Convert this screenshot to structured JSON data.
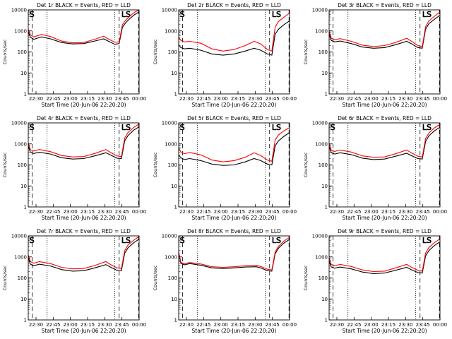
{
  "chart_data": [
    {
      "type": "line",
      "title": "Det 1r BLACK = Events, RED = LLD",
      "xlabel": "Start Time (20-Jun-06 22:20:20)",
      "ylabel": "Counts/sec",
      "yscale": "log",
      "ylim": [
        1,
        10000
      ],
      "x_ticks": [
        "22:30",
        "22:45",
        "23:00",
        "23:15",
        "23:30",
        "23:45",
        "00:00"
      ],
      "y_ticks": [
        "1",
        "10",
        "100",
        "1000",
        "10000"
      ],
      "annotations": [
        "S",
        "LS"
      ],
      "series": [
        {
          "color": "#000000",
          "x": [
            0,
            0.02,
            0.05,
            0.08,
            0.12,
            0.2,
            0.3,
            0.4,
            0.5,
            0.6,
            0.68,
            0.72,
            0.78,
            0.82,
            0.85,
            0.88,
            0.92,
            0.96,
            1.0
          ],
          "values": [
            900,
            500,
            400,
            450,
            520,
            420,
            280,
            240,
            250,
            330,
            420,
            330,
            230,
            250,
            1500,
            2500,
            4000,
            6000,
            8000
          ]
        },
        {
          "color": "#ff0000",
          "x": [
            0,
            0.02,
            0.05,
            0.08,
            0.12,
            0.2,
            0.3,
            0.4,
            0.5,
            0.6,
            0.68,
            0.72,
            0.78,
            0.82,
            0.85,
            0.88,
            0.92,
            0.96,
            1.0
          ],
          "values": [
            1200,
            650,
            520,
            580,
            680,
            540,
            330,
            270,
            280,
            400,
            560,
            420,
            290,
            300,
            2000,
            3300,
            5200,
            7800,
            10000
          ]
        }
      ]
    },
    {
      "type": "line",
      "title": "Det 2r BLACK = Events, RED = LLD",
      "xlabel": "Start Time (20-Jun-06 22:20:20)",
      "ylabel": "Counts/sec",
      "yscale": "log",
      "ylim": [
        1,
        10000
      ],
      "x_ticks": [
        "22:30",
        "22:45",
        "23:00",
        "23:15",
        "23:30",
        "23:45",
        "00:00"
      ],
      "y_ticks": [
        "1",
        "10",
        "100",
        "1000",
        "10000"
      ],
      "annotations": [
        "S",
        "LS"
      ],
      "series": [
        {
          "color": "#000000",
          "x": [
            0,
            0.02,
            0.05,
            0.1,
            0.2,
            0.3,
            0.4,
            0.5,
            0.6,
            0.68,
            0.74,
            0.8,
            0.84,
            0.87,
            0.9,
            0.95,
            1.0
          ],
          "values": [
            220,
            160,
            140,
            150,
            120,
            80,
            70,
            80,
            110,
            150,
            120,
            80,
            70,
            700,
            1200,
            2000,
            3000
          ]
        },
        {
          "color": "#ff0000",
          "x": [
            0,
            0.02,
            0.05,
            0.1,
            0.2,
            0.3,
            0.4,
            0.5,
            0.6,
            0.68,
            0.74,
            0.8,
            0.84,
            0.87,
            0.9,
            0.95,
            1.0
          ],
          "values": [
            500,
            350,
            300,
            320,
            260,
            140,
            110,
            130,
            200,
            320,
            240,
            130,
            110,
            1500,
            2800,
            4500,
            7000
          ]
        }
      ]
    },
    {
      "type": "line",
      "title": "Det 3r BLACK = Events, RED = LLD",
      "xlabel": "Start Time (20-Jun-06 22:20:20)",
      "ylabel": "Counts/sec",
      "yscale": "log",
      "ylim": [
        1,
        10000
      ],
      "x_ticks": [
        "22:30",
        "22:45",
        "23:00",
        "23:15",
        "23:30",
        "23:45",
        "00:00"
      ],
      "y_ticks": [
        "1",
        "10",
        "100",
        "1000",
        "10000"
      ],
      "annotations": [
        "LS"
      ],
      "series": [
        {
          "color": "#000000",
          "x": [
            0,
            0.02,
            0.05,
            0.1,
            0.2,
            0.3,
            0.4,
            0.5,
            0.6,
            0.7,
            0.74,
            0.8,
            0.84,
            0.87,
            0.9,
            0.95,
            1.0
          ],
          "values": [
            700,
            350,
            300,
            330,
            250,
            170,
            150,
            160,
            220,
            320,
            250,
            160,
            150,
            1200,
            2200,
            3600,
            5500
          ]
        },
        {
          "color": "#ff0000",
          "x": [
            0,
            0.02,
            0.05,
            0.1,
            0.2,
            0.3,
            0.4,
            0.5,
            0.6,
            0.7,
            0.74,
            0.8,
            0.84,
            0.87,
            0.9,
            0.95,
            1.0
          ],
          "values": [
            950,
            450,
            380,
            430,
            320,
            210,
            180,
            200,
            280,
            450,
            330,
            200,
            180,
            1600,
            3000,
            5000,
            8000
          ]
        }
      ]
    },
    {
      "type": "line",
      "title": "Det 4r BLACK = Events, RED = LLD",
      "xlabel": "Start Time (20-Jun-06 22:20:20)",
      "ylabel": "Counts/sec",
      "yscale": "log",
      "ylim": [
        1,
        10000
      ],
      "x_ticks": [
        "22:30",
        "22:45",
        "23:00",
        "23:15",
        "23:30",
        "23:45",
        "00:00"
      ],
      "y_ticks": [
        "1",
        "10",
        "100",
        "1000",
        "10000"
      ],
      "annotations": [
        "S",
        "LS"
      ],
      "series": [
        {
          "color": "#000000",
          "x": [
            0,
            0.02,
            0.05,
            0.1,
            0.2,
            0.3,
            0.4,
            0.5,
            0.6,
            0.7,
            0.74,
            0.8,
            0.84,
            0.87,
            0.9,
            0.95,
            1.0
          ],
          "values": [
            800,
            400,
            350,
            400,
            330,
            220,
            190,
            200,
            270,
            380,
            300,
            210,
            200,
            1400,
            2500,
            4500,
            6500
          ]
        },
        {
          "color": "#ff0000",
          "x": [
            0,
            0.02,
            0.05,
            0.1,
            0.2,
            0.3,
            0.4,
            0.5,
            0.6,
            0.7,
            0.74,
            0.8,
            0.84,
            0.87,
            0.9,
            0.95,
            1.0
          ],
          "values": [
            1100,
            530,
            460,
            540,
            430,
            280,
            240,
            250,
            350,
            540,
            400,
            270,
            250,
            1900,
            3500,
            6000,
            9000
          ]
        }
      ]
    },
    {
      "type": "line",
      "title": "Det 5r BLACK = Events, RED = LLD",
      "xlabel": "Start Time (20-Jun-06 22:20:20)",
      "ylabel": "Counts/sec",
      "yscale": "log",
      "ylim": [
        1,
        10000
      ],
      "x_ticks": [
        "22:30",
        "22:45",
        "23:00",
        "23:15",
        "23:30",
        "23:45",
        "00:00"
      ],
      "y_ticks": [
        "1",
        "10",
        "100",
        "1000",
        "10000"
      ],
      "annotations": [
        "S",
        "LS"
      ],
      "series": [
        {
          "color": "#000000",
          "x": [
            0,
            0.02,
            0.05,
            0.1,
            0.2,
            0.3,
            0.4,
            0.5,
            0.6,
            0.68,
            0.74,
            0.8,
            0.84,
            0.87,
            0.9,
            0.95,
            1.0
          ],
          "values": [
            300,
            220,
            180,
            200,
            160,
            110,
            95,
            100,
            140,
            200,
            160,
            110,
            100,
            800,
            1400,
            2300,
            3500
          ]
        },
        {
          "color": "#ff0000",
          "x": [
            0,
            0.02,
            0.05,
            0.1,
            0.2,
            0.3,
            0.4,
            0.5,
            0.6,
            0.68,
            0.74,
            0.8,
            0.84,
            0.87,
            0.9,
            0.95,
            1.0
          ],
          "values": [
            600,
            420,
            340,
            390,
            300,
            170,
            140,
            160,
            230,
            380,
            280,
            170,
            150,
            1500,
            2700,
            4200,
            6000
          ]
        }
      ]
    },
    {
      "type": "line",
      "title": "Det 6r BLACK = Events, RED = LLD",
      "xlabel": "Start Time (20-Jun-06 22:20:20)",
      "ylabel": "Counts/sec",
      "yscale": "log",
      "ylim": [
        1,
        10000
      ],
      "x_ticks": [
        "22:30",
        "22:45",
        "23:00",
        "23:15",
        "23:30",
        "23:45",
        "00:00"
      ],
      "y_ticks": [
        "1",
        "10",
        "100",
        "1000",
        "10000"
      ],
      "annotations": [
        "S",
        "LS"
      ],
      "series": [
        {
          "color": "#000000",
          "x": [
            0,
            0.02,
            0.05,
            0.1,
            0.2,
            0.3,
            0.4,
            0.5,
            0.6,
            0.7,
            0.74,
            0.8,
            0.84,
            0.87,
            0.9,
            0.95,
            1.0
          ],
          "values": [
            750,
            380,
            330,
            380,
            310,
            210,
            180,
            190,
            260,
            360,
            280,
            200,
            190,
            1300,
            2400,
            4200,
            6200
          ]
        },
        {
          "color": "#ff0000",
          "x": [
            0,
            0.02,
            0.05,
            0.1,
            0.2,
            0.3,
            0.4,
            0.5,
            0.6,
            0.7,
            0.74,
            0.8,
            0.84,
            0.87,
            0.9,
            0.95,
            1.0
          ],
          "values": [
            1050,
            500,
            440,
            510,
            410,
            270,
            230,
            240,
            340,
            510,
            380,
            260,
            240,
            1800,
            3300,
            5800,
            8500
          ]
        }
      ]
    },
    {
      "type": "line",
      "title": "Det 7r BLACK = Events, RED = LLD",
      "xlabel": "Start Time (20-Jun-06 22:20:20)",
      "ylabel": "Counts/sec",
      "yscale": "log",
      "ylim": [
        1,
        10000
      ],
      "x_ticks": [
        "22:30",
        "22:45",
        "23:00",
        "23:15",
        "23:30",
        "23:45",
        "00:00"
      ],
      "y_ticks": [
        "1",
        "10",
        "100",
        "1000",
        "10000"
      ],
      "annotations": [
        "S",
        "LS"
      ],
      "series": [
        {
          "color": "#000000",
          "x": [
            0,
            0.02,
            0.05,
            0.1,
            0.2,
            0.3,
            0.4,
            0.5,
            0.6,
            0.7,
            0.74,
            0.8,
            0.84,
            0.87,
            0.9,
            0.95,
            1.0
          ],
          "values": [
            900,
            450,
            380,
            450,
            370,
            250,
            210,
            220,
            300,
            430,
            330,
            230,
            220,
            1500,
            2700,
            4700,
            7000
          ]
        },
        {
          "color": "#ff0000",
          "x": [
            0,
            0.02,
            0.05,
            0.1,
            0.2,
            0.3,
            0.4,
            0.5,
            0.6,
            0.7,
            0.74,
            0.8,
            0.84,
            0.87,
            0.9,
            0.95,
            1.0
          ],
          "values": [
            1250,
            600,
            500,
            600,
            480,
            320,
            270,
            280,
            390,
            600,
            440,
            300,
            280,
            2000,
            3700,
            6200,
            9500
          ]
        }
      ]
    },
    {
      "type": "line",
      "title": "Det 8r BLACK = Events, RED = LLD",
      "xlabel": "Start Time (20-Jun-06 22:20:20)",
      "ylabel": "Counts/sec",
      "yscale": "log",
      "ylim": [
        1,
        10000
      ],
      "x_ticks": [
        "22:30",
        "22:45",
        "23:00",
        "23:15",
        "23:30",
        "23:45",
        "00:00"
      ],
      "y_ticks": [
        "1",
        "10",
        "100",
        "1000",
        "10000"
      ],
      "annotations": [
        "S",
        "LS"
      ],
      "series": [
        {
          "color": "#000000",
          "x": [
            0,
            0.02,
            0.05,
            0.1,
            0.2,
            0.3,
            0.4,
            0.5,
            0.6,
            0.7,
            0.74,
            0.8,
            0.84,
            0.87,
            0.9,
            0.95,
            1.0
          ],
          "values": [
            1500,
            500,
            420,
            480,
            400,
            300,
            280,
            300,
            330,
            340,
            300,
            220,
            210,
            1400,
            2600,
            4600,
            6800
          ]
        },
        {
          "color": "#ff0000",
          "x": [
            0,
            0.02,
            0.05,
            0.1,
            0.2,
            0.3,
            0.4,
            0.5,
            0.6,
            0.7,
            0.74,
            0.8,
            0.84,
            0.87,
            0.9,
            0.95,
            1.0
          ],
          "values": [
            1800,
            550,
            470,
            540,
            460,
            340,
            320,
            340,
            380,
            400,
            350,
            260,
            240,
            1700,
            3200,
            5700,
            8500
          ]
        }
      ]
    },
    {
      "type": "line",
      "title": "Det 9r BLACK = Events, RED = LLD",
      "xlabel": "Start Time (20-Jun-06 22:20:20)",
      "ylabel": "Counts/sec",
      "yscale": "log",
      "ylim": [
        1,
        10000
      ],
      "x_ticks": [
        "22:30",
        "22:45",
        "23:00",
        "23:15",
        "23:30",
        "23:45",
        "00:00"
      ],
      "y_ticks": [
        "1",
        "10",
        "100",
        "1000",
        "10000"
      ],
      "annotations": [
        "LS"
      ],
      "series": [
        {
          "color": "#000000",
          "x": [
            0,
            0.02,
            0.05,
            0.1,
            0.2,
            0.3,
            0.4,
            0.5,
            0.6,
            0.7,
            0.74,
            0.8,
            0.84,
            0.87,
            0.9,
            0.95,
            1.0
          ],
          "values": [
            600,
            330,
            290,
            330,
            270,
            190,
            160,
            170,
            230,
            320,
            250,
            180,
            170,
            1100,
            2000,
            3500,
            5200
          ]
        },
        {
          "color": "#ff0000",
          "x": [
            0,
            0.02,
            0.05,
            0.1,
            0.2,
            0.3,
            0.4,
            0.5,
            0.6,
            0.7,
            0.74,
            0.8,
            0.84,
            0.87,
            0.9,
            0.95,
            1.0
          ],
          "values": [
            850,
            430,
            380,
            440,
            350,
            240,
            200,
            210,
            300,
            440,
            330,
            230,
            210,
            1500,
            2800,
            4800,
            7200
          ]
        }
      ]
    }
  ]
}
